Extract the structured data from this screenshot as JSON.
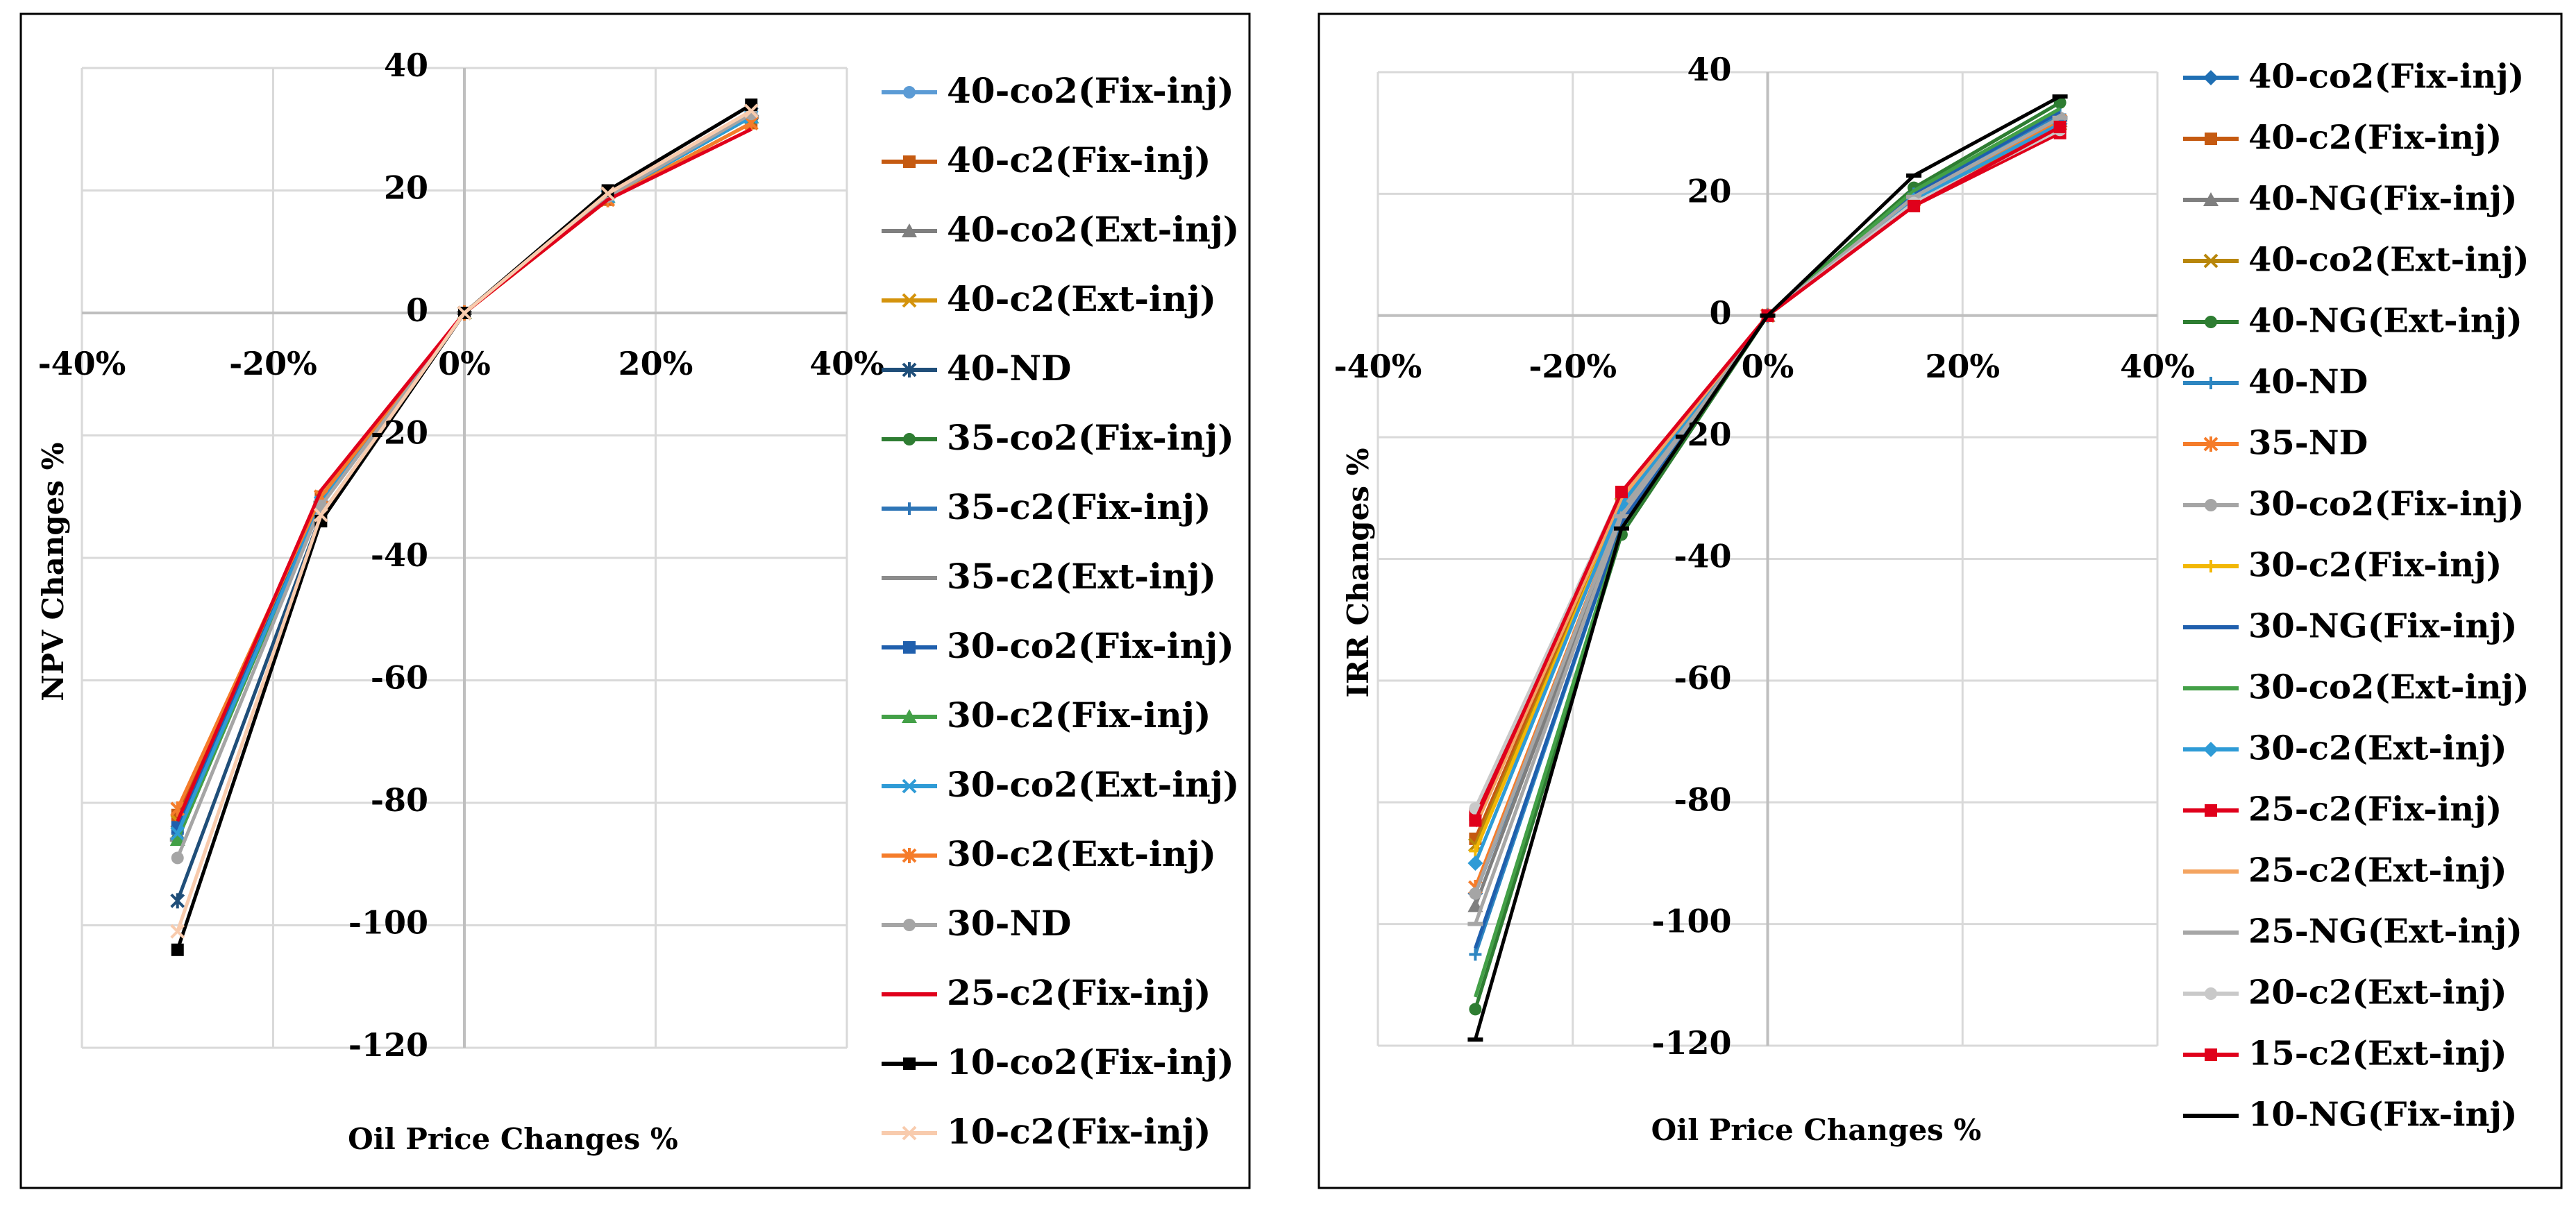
{
  "charts": [
    {
      "id": "npv",
      "chart_data": {
        "type": "line",
        "xlabel": "Oil Price Changes %",
        "ylabel": "NPV Changes %",
        "x": [
          -30,
          -15,
          0,
          15,
          30
        ],
        "xlim": [
          -40,
          40
        ],
        "ylim": [
          -120,
          40
        ],
        "x_ticks": [
          "-40%",
          "-20%",
          "0%",
          "20%",
          "40%"
        ],
        "y_ticks": [
          "40",
          "20",
          "0",
          "-20",
          "-40",
          "-60",
          "-80",
          "-100",
          "-120"
        ],
        "grid": true,
        "legend_position": "right",
        "series": [
          {
            "name": "40-co2(Fix-inj)",
            "color": "#5B9BD5",
            "marker": "circle",
            "values": [
              -84,
              -31,
              0,
              19,
              32
            ]
          },
          {
            "name": "40-c2(Fix-inj)",
            "color": "#C55A11",
            "marker": "square",
            "values": [
              -82,
              -30,
              0,
              18.5,
              31
            ]
          },
          {
            "name": "40-co2(Ext-inj)",
            "color": "#7F7F7F",
            "marker": "triangle",
            "values": [
              -85,
              -31,
              0,
              19,
              32
            ]
          },
          {
            "name": "40-c2(Ext-inj)",
            "color": "#D4930C",
            "marker": "x",
            "values": [
              -83,
              -30,
              0,
              18.5,
              31
            ]
          },
          {
            "name": "40-ND",
            "color": "#1F4E79",
            "marker": "star",
            "values": [
              -96,
              -33,
              0,
              19.5,
              32.5
            ]
          },
          {
            "name": "35-co2(Fix-inj)",
            "color": "#2E7D32",
            "marker": "circle",
            "values": [
              -86,
              -31,
              0,
              19,
              32
            ]
          },
          {
            "name": "35-c2(Fix-inj)",
            "color": "#2E75B6",
            "marker": "plus",
            "values": [
              -85,
              -31,
              0,
              19,
              32
            ]
          },
          {
            "name": "35-c2(Ext-inj)",
            "color": "#8C8C8C",
            "marker": "dash",
            "values": [
              -86,
              -31,
              0,
              19,
              32
            ]
          },
          {
            "name": "30-co2(Fix-inj)",
            "color": "#1F5FAD",
            "marker": "square",
            "values": [
              -84,
              -31,
              0,
              19,
              32
            ]
          },
          {
            "name": "30-c2(Fix-inj)",
            "color": "#43A047",
            "marker": "triangle",
            "values": [
              -86,
              -31,
              0,
              19,
              32
            ]
          },
          {
            "name": "30-co2(Ext-inj)",
            "color": "#2E9BD6",
            "marker": "x",
            "values": [
              -85,
              -31,
              0,
              19,
              32
            ]
          },
          {
            "name": "30-c2(Ext-inj)",
            "color": "#F57C2A",
            "marker": "star",
            "values": [
              -81,
              -30,
              0,
              18.5,
              31
            ]
          },
          {
            "name": "30-ND",
            "color": "#A5A5A5",
            "marker": "circle",
            "values": [
              -89,
              -31.5,
              0,
              19,
              32.5
            ]
          },
          {
            "name": "25-c2(Fix-inj)",
            "color": "#E0001B",
            "marker": "none",
            "values": [
              -83,
              -29,
              0,
              18.5,
              30
            ]
          },
          {
            "name": "10-co2(Fix-inj)",
            "color": "#000000",
            "marker": "square",
            "values": [
              -104,
              -34,
              0,
              20,
              34
            ]
          },
          {
            "name": "10-c2(Fix-inj)",
            "color": "#F8CBAD",
            "marker": "x",
            "values": [
              -101,
              -33,
              0,
              19.5,
              33
            ]
          }
        ]
      }
    },
    {
      "id": "irr",
      "chart_data": {
        "type": "line",
        "xlabel": "Oil Price Changes %",
        "ylabel": "IRR Changes %",
        "x": [
          -30,
          -15,
          0,
          15,
          30
        ],
        "xlim": [
          -40,
          40
        ],
        "ylim": [
          -120,
          40
        ],
        "x_ticks": [
          "-40%",
          "-20%",
          "0%",
          "20%",
          "40%"
        ],
        "y_ticks": [
          "40",
          "20",
          "0",
          "-20",
          "-40",
          "-60",
          "-80",
          "-100",
          "-120"
        ],
        "grid": true,
        "legend_position": "right",
        "series": [
          {
            "name": "40-co2(Fix-inj)",
            "color": "#1F6FB4",
            "marker": "diamond",
            "values": [
              -95,
              -33,
              0,
              19,
              32
            ]
          },
          {
            "name": "40-c2(Fix-inj)",
            "color": "#C55A11",
            "marker": "square",
            "values": [
              -86,
              -30,
              0,
              18.5,
              31
            ]
          },
          {
            "name": "40-NG(Fix-inj)",
            "color": "#7F7F7F",
            "marker": "triangle",
            "values": [
              -97,
              -33,
              0,
              19.5,
              32
            ]
          },
          {
            "name": "40-co2(Ext-inj)",
            "color": "#B8860B",
            "marker": "x",
            "values": [
              -87,
              -31,
              0,
              19,
              31.5
            ]
          },
          {
            "name": "40-NG(Ext-inj)",
            "color": "#2E7D32",
            "marker": "circle",
            "values": [
              -114,
              -36,
              0,
              21,
              35
            ]
          },
          {
            "name": "40-ND",
            "color": "#2E86C1",
            "marker": "plus",
            "values": [
              -105,
              -34,
              0,
              20,
              33
            ]
          },
          {
            "name": "35-ND",
            "color": "#F57C2A",
            "marker": "star",
            "values": [
              -94,
              -32,
              0,
              19,
              32
            ]
          },
          {
            "name": "30-co2(Fix-inj)",
            "color": "#A5A5A5",
            "marker": "circle",
            "values": [
              -95,
              -32,
              0,
              19.5,
              32.5
            ]
          },
          {
            "name": "30-c2(Fix-inj)",
            "color": "#F2B705",
            "marker": "plus",
            "values": [
              -88,
              -31,
              0,
              19,
              31.5
            ]
          },
          {
            "name": "30-NG(Fix-inj)",
            "color": "#1F5FAD",
            "marker": "none",
            "values": [
              -104,
              -34,
              0,
              20,
              33.5
            ]
          },
          {
            "name": "30-co2(Ext-inj)",
            "color": "#43A047",
            "marker": "none",
            "values": [
              -112,
              -35,
              0,
              20.5,
              34
            ]
          },
          {
            "name": "30-c2(Ext-inj)",
            "color": "#2E9BD6",
            "marker": "diamond",
            "values": [
              -90,
              -31,
              0,
              19,
              31.5
            ]
          },
          {
            "name": "25-c2(Fix-inj)",
            "color": "#E0001B",
            "marker": "square",
            "values": [
              -82,
              -29,
              0,
              18,
              30
            ]
          },
          {
            "name": "25-c2(Ext-inj)",
            "color": "#F4A460",
            "marker": "none",
            "values": [
              -84,
              -30,
              0,
              18.5,
              30.5
            ]
          },
          {
            "name": "25-NG(Ext-inj)",
            "color": "#A6A6A6",
            "marker": "dash",
            "values": [
              -100,
              -33,
              0,
              19.5,
              32.5
            ]
          },
          {
            "name": "20-c2(Ext-inj)",
            "color": "#C9C9C9",
            "marker": "circle",
            "values": [
              -81,
              -29,
              0,
              18.5,
              30.5
            ]
          },
          {
            "name": "15-c2(Ext-inj)",
            "color": "#E0001B",
            "marker": "square",
            "values": [
              -83,
              -29,
              0,
              18,
              31
            ]
          },
          {
            "name": "10-NG(Fix-inj)",
            "color": "#000000",
            "marker": "dash",
            "values": [
              -119,
              -35,
              0,
              23,
              36
            ]
          }
        ]
      }
    }
  ]
}
